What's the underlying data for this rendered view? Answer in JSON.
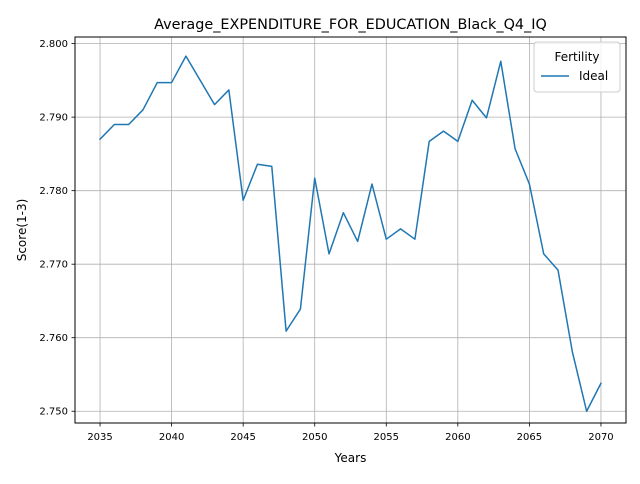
{
  "chart_data": {
    "type": "line",
    "title": "Average_EXPENDITURE_FOR_EDUCATION_Black_Q4_IQ",
    "xlabel": "Years",
    "ylabel": "Score(1-3)",
    "xlim": [
      2033.25,
      2071.75
    ],
    "ylim": [
      2.7484,
      2.8009
    ],
    "x_ticks": [
      2035,
      2040,
      2045,
      2050,
      2055,
      2060,
      2065,
      2070
    ],
    "x_tick_labels": [
      "2035",
      "2040",
      "2045",
      "2050",
      "2055",
      "2060",
      "2065",
      "2070"
    ],
    "y_ticks": [
      2.75,
      2.76,
      2.77,
      2.78,
      2.79,
      2.8
    ],
    "y_tick_labels": [
      "2.750",
      "2.760",
      "2.770",
      "2.780",
      "2.790",
      "2.800"
    ],
    "grid": true,
    "legend": {
      "title": "Fertility",
      "placement": "top-right"
    },
    "series": [
      {
        "name": "Ideal",
        "color": "#1f77b4",
        "x": [
          2035,
          2036,
          2037,
          2038,
          2039,
          2040,
          2041,
          2042,
          2043,
          2044,
          2045,
          2046,
          2047,
          2048,
          2049,
          2050,
          2051,
          2052,
          2053,
          2054,
          2055,
          2056,
          2057,
          2058,
          2059,
          2060,
          2061,
          2062,
          2063,
          2064,
          2065,
          2066,
          2067,
          2068,
          2069,
          2070
        ],
        "values": [
          2.787,
          2.789,
          2.789,
          2.791,
          2.7947,
          2.7947,
          2.7983,
          2.795,
          2.7917,
          2.7937,
          2.7787,
          2.7836,
          2.7833,
          2.7609,
          2.7639,
          2.7817,
          2.7714,
          2.777,
          2.7731,
          2.7809,
          2.7734,
          2.7748,
          2.7734,
          2.7867,
          2.7881,
          2.7867,
          2.7923,
          2.7899,
          2.7976,
          2.7857,
          2.7809,
          2.7714,
          2.7692,
          2.7581,
          2.75,
          2.7538
        ]
      }
    ]
  }
}
